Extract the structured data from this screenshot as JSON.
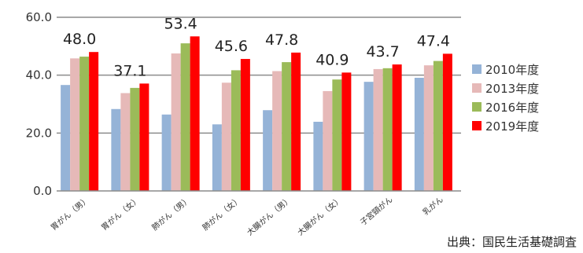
{
  "chart_data": {
    "type": "bar",
    "categories": [
      "胃がん（男）",
      "胃がん（女）",
      "肺がん（男）",
      "肺がん（女）",
      "大腸がん（男）",
      "大腸がん（女）",
      "子宮頸がん",
      "乳がん"
    ],
    "series": [
      {
        "name": "2010年度",
        "color": "#95b3d7",
        "values": [
          36.6,
          28.3,
          26.4,
          23.0,
          27.9,
          23.9,
          37.7,
          39.1
        ]
      },
      {
        "name": "2013年度",
        "color": "#e6b9b8",
        "values": [
          45.8,
          33.8,
          47.5,
          37.4,
          41.4,
          34.5,
          42.1,
          43.4
        ]
      },
      {
        "name": "2016年度",
        "color": "#9bbb59",
        "values": [
          46.4,
          35.6,
          51.0,
          41.7,
          44.5,
          38.5,
          42.4,
          44.9
        ]
      },
      {
        "name": "2019年度",
        "color": "#ff0000",
        "values": [
          48.0,
          37.1,
          53.4,
          45.6,
          47.8,
          40.9,
          43.7,
          47.4
        ]
      }
    ],
    "data_labels": [
      "48.0",
      "37.1",
      "53.4",
      "45.6",
      "47.8",
      "40.9",
      "43.7",
      "47.4"
    ],
    "yticks": [
      "0.0",
      "20.0",
      "40.0",
      "60.0"
    ],
    "ylim": [
      0,
      60
    ],
    "legend_position": "right",
    "grid": true
  },
  "source": "出典：国民生活基礎調査"
}
